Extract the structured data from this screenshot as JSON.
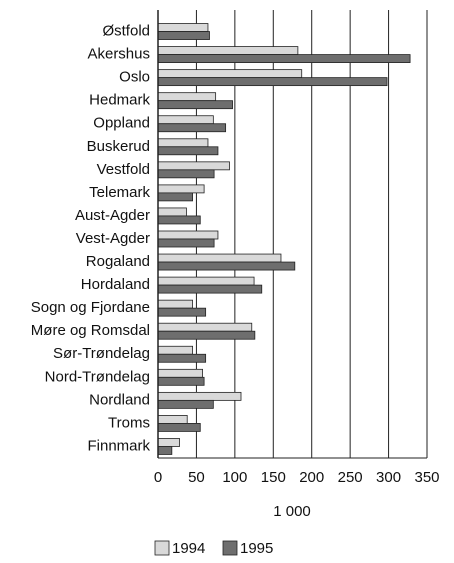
{
  "chart_data": {
    "type": "hbar",
    "categories": [
      "Østfold",
      "Akershus",
      "Oslo",
      "Hedmark",
      "Oppland",
      "Buskerud",
      "Vestfold",
      "Telemark",
      "Aust-Agder",
      "Vest-Agder",
      "Rogaland",
      "Hordaland",
      "Sogn og Fjordane",
      "Møre og Romsdal",
      "Sør-Trøndelag",
      "Nord-Trøndelag",
      "Nordland",
      "Troms",
      "Finnmark"
    ],
    "series": [
      {
        "name": "1994",
        "color": "#d9d9d9",
        "values": [
          65,
          182,
          187,
          75,
          72,
          65,
          93,
          60,
          37,
          78,
          160,
          125,
          45,
          122,
          45,
          58,
          108,
          38,
          28
        ]
      },
      {
        "name": "1995",
        "color": "#6e6e6e",
        "values": [
          67,
          328,
          298,
          97,
          88,
          78,
          73,
          45,
          55,
          73,
          178,
          135,
          62,
          126,
          62,
          60,
          72,
          55,
          18
        ]
      }
    ],
    "x_label": "1 000",
    "xlim": [
      0,
      350
    ],
    "xticks": [
      0,
      50,
      100,
      150,
      200,
      250,
      300,
      350
    ],
    "grid": true,
    "legend": "bottom"
  }
}
